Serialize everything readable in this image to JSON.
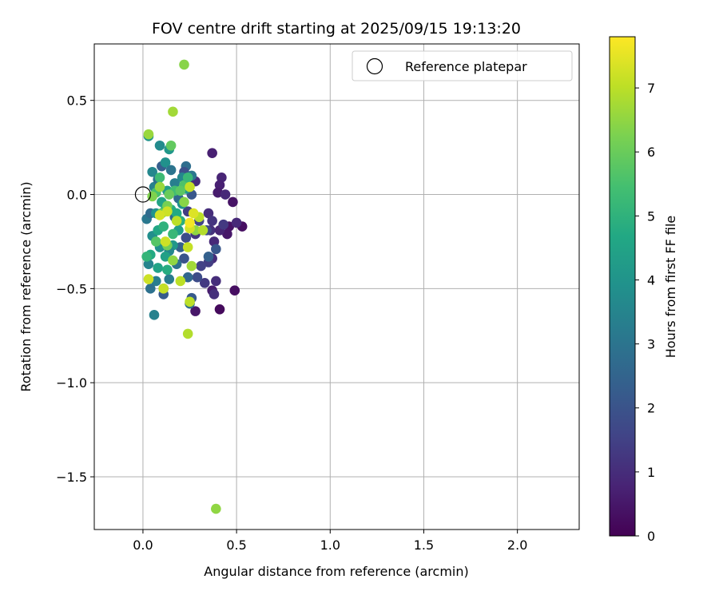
{
  "chart_data": {
    "type": "scatter",
    "title": "FOV centre drift starting at 2025/09/15 19:13:20",
    "xlabel": "Angular distance from reference (arcmin)",
    "ylabel": "Rotation from reference (arcmin)",
    "xlim": [
      -0.26,
      2.33
    ],
    "ylim": [
      -1.78,
      0.8
    ],
    "xticks": [
      0.0,
      0.5,
      1.0,
      1.5,
      2.0
    ],
    "xtick_labels": [
      "0.0",
      "0.5",
      "1.0",
      "1.5",
      "2.0"
    ],
    "yticks": [
      0.5,
      0.0,
      -0.5,
      -1.0,
      -1.5
    ],
    "ytick_labels": [
      "0.5",
      "0.0",
      "−0.5",
      "−1.0",
      "−1.5"
    ],
    "grid": true,
    "legend": {
      "position": "top-right",
      "entries": [
        "Reference platepar"
      ]
    },
    "reference_point": {
      "x": 0.0,
      "y": 0.0
    },
    "colorbar": {
      "label": "Hours from first FF file",
      "colormap": "viridis",
      "range": [
        0,
        7.8
      ],
      "ticks": [
        0,
        1,
        2,
        3,
        4,
        5,
        6,
        7
      ],
      "tick_labels": [
        "0",
        "1",
        "2",
        "3",
        "4",
        "5",
        "6",
        "7"
      ]
    },
    "points": [
      {
        "x": 0.41,
        "y": -0.61,
        "c": 0.2
      },
      {
        "x": 0.49,
        "y": -0.51,
        "c": 0.3
      },
      {
        "x": 0.28,
        "y": -0.62,
        "c": 0.5
      },
      {
        "x": 0.37,
        "y": -0.51,
        "c": 0.6
      },
      {
        "x": 0.46,
        "y": -0.17,
        "c": 0.4
      },
      {
        "x": 0.53,
        "y": -0.17,
        "c": 0.3
      },
      {
        "x": 0.45,
        "y": -0.21,
        "c": 0.5
      },
      {
        "x": 0.42,
        "y": 0.09,
        "c": 0.8
      },
      {
        "x": 0.41,
        "y": 0.05,
        "c": 0.7
      },
      {
        "x": 0.48,
        "y": -0.04,
        "c": 0.4
      },
      {
        "x": 0.4,
        "y": 0.01,
        "c": 0.6
      },
      {
        "x": 0.44,
        "y": -0.0,
        "c": 0.9
      },
      {
        "x": 0.38,
        "y": -0.25,
        "c": 0.9
      },
      {
        "x": 0.38,
        "y": -0.53,
        "c": 1.1
      },
      {
        "x": 0.39,
        "y": -0.46,
        "c": 1.0
      },
      {
        "x": 0.37,
        "y": 0.22,
        "c": 0.7
      },
      {
        "x": 0.35,
        "y": -0.1,
        "c": 1.0
      },
      {
        "x": 0.37,
        "y": -0.14,
        "c": 1.2
      },
      {
        "x": 0.5,
        "y": -0.15,
        "c": 0.9
      },
      {
        "x": 0.36,
        "y": -0.19,
        "c": 1.1
      },
      {
        "x": 0.41,
        "y": -0.19,
        "c": 0.8
      },
      {
        "x": 0.43,
        "y": -0.16,
        "c": 1.3
      },
      {
        "x": 0.33,
        "y": -0.47,
        "c": 1.3
      },
      {
        "x": 0.37,
        "y": -0.34,
        "c": 1.0
      },
      {
        "x": 0.35,
        "y": -0.36,
        "c": 1.4
      },
      {
        "x": 0.28,
        "y": 0.07,
        "c": 1.0
      },
      {
        "x": 0.3,
        "y": -0.14,
        "c": 1.6
      },
      {
        "x": 0.28,
        "y": -0.21,
        "c": 1.2
      },
      {
        "x": 0.31,
        "y": -0.38,
        "c": 1.5
      },
      {
        "x": 0.29,
        "y": -0.44,
        "c": 1.8
      },
      {
        "x": 0.39,
        "y": -0.29,
        "c": 2.1
      },
      {
        "x": 0.35,
        "y": -0.33,
        "c": 2.4
      },
      {
        "x": 0.34,
        "y": -0.19,
        "c": 1.7
      },
      {
        "x": 0.26,
        "y": 0.0,
        "c": 2.1
      },
      {
        "x": 0.24,
        "y": -0.09,
        "c": 1.4
      },
      {
        "x": 0.23,
        "y": 0.15,
        "c": 2.8
      },
      {
        "x": 0.22,
        "y": 0.12,
        "c": 1.9
      },
      {
        "x": 0.26,
        "y": 0.1,
        "c": 3.1
      },
      {
        "x": 0.26,
        "y": -0.55,
        "c": 2.2
      },
      {
        "x": 0.25,
        "y": -0.58,
        "c": 2.8
      },
      {
        "x": 0.24,
        "y": -0.44,
        "c": 2.6
      },
      {
        "x": 0.22,
        "y": -0.34,
        "c": 2.0
      },
      {
        "x": 0.2,
        "y": -0.28,
        "c": 2.4
      },
      {
        "x": 0.23,
        "y": -0.23,
        "c": 1.8
      },
      {
        "x": 0.17,
        "y": -0.12,
        "c": 2.6
      },
      {
        "x": 0.18,
        "y": -0.37,
        "c": 2.9
      },
      {
        "x": 0.14,
        "y": -0.45,
        "c": 3.2
      },
      {
        "x": 0.11,
        "y": -0.5,
        "c": 2.5
      },
      {
        "x": 0.11,
        "y": -0.53,
        "c": 2.2
      },
      {
        "x": 0.07,
        "y": -0.46,
        "c": 3.3
      },
      {
        "x": 0.04,
        "y": -0.5,
        "c": 2.9
      },
      {
        "x": 0.06,
        "y": -0.64,
        "c": 3.4
      },
      {
        "x": 0.03,
        "y": -0.37,
        "c": 3.5
      },
      {
        "x": 0.05,
        "y": -0.22,
        "c": 3.8
      },
      {
        "x": 0.02,
        "y": -0.13,
        "c": 3.1
      },
      {
        "x": 0.04,
        "y": -0.1,
        "c": 2.7
      },
      {
        "x": 0.06,
        "y": 0.04,
        "c": 3.4
      },
      {
        "x": 0.05,
        "y": 0.12,
        "c": 3.6
      },
      {
        "x": 0.08,
        "y": 0.08,
        "c": 2.9
      },
      {
        "x": 0.1,
        "y": 0.15,
        "c": 2.3
      },
      {
        "x": 0.12,
        "y": 0.17,
        "c": 3.9
      },
      {
        "x": 0.09,
        "y": 0.26,
        "c": 3.7
      },
      {
        "x": 0.03,
        "y": 0.31,
        "c": 4.0
      },
      {
        "x": 0.14,
        "y": 0.24,
        "c": 4.1
      },
      {
        "x": 0.15,
        "y": 0.13,
        "c": 3.0
      },
      {
        "x": 0.17,
        "y": 0.06,
        "c": 3.3
      },
      {
        "x": 0.19,
        "y": -0.02,
        "c": 2.7
      },
      {
        "x": 0.21,
        "y": 0.09,
        "c": 3.6
      },
      {
        "x": 0.23,
        "y": 0.03,
        "c": 4.2
      },
      {
        "x": 0.21,
        "y": -0.05,
        "c": 3.9
      },
      {
        "x": 0.19,
        "y": -0.19,
        "c": 4.3
      },
      {
        "x": 0.16,
        "y": -0.27,
        "c": 4.1
      },
      {
        "x": 0.14,
        "y": -0.3,
        "c": 3.6
      },
      {
        "x": 0.12,
        "y": -0.33,
        "c": 4.4
      },
      {
        "x": 0.09,
        "y": -0.28,
        "c": 3.9
      },
      {
        "x": 0.08,
        "y": -0.19,
        "c": 4.6
      },
      {
        "x": 0.07,
        "y": -0.1,
        "c": 4.0
      },
      {
        "x": 0.1,
        "y": -0.04,
        "c": 4.5
      },
      {
        "x": 0.13,
        "y": 0.02,
        "c": 4.3
      },
      {
        "x": 0.15,
        "y": -0.08,
        "c": 4.8
      },
      {
        "x": 0.18,
        "y": -0.1,
        "c": 4.7
      },
      {
        "x": 0.2,
        "y": -0.14,
        "c": 4.9
      },
      {
        "x": 0.11,
        "y": -0.17,
        "c": 5.0
      },
      {
        "x": 0.04,
        "y": -0.32,
        "c": 4.7
      },
      {
        "x": 0.02,
        "y": -0.33,
        "c": 5.1
      },
      {
        "x": 0.08,
        "y": -0.39,
        "c": 4.5
      },
      {
        "x": 0.13,
        "y": -0.4,
        "c": 4.8
      },
      {
        "x": 0.16,
        "y": -0.21,
        "c": 5.2
      },
      {
        "x": 0.12,
        "y": -0.08,
        "c": 5.0
      },
      {
        "x": 0.09,
        "y": 0.09,
        "c": 5.3
      },
      {
        "x": 0.07,
        "y": 0.01,
        "c": 5.5
      },
      {
        "x": 0.17,
        "y": 0.02,
        "c": 5.4
      },
      {
        "x": 0.22,
        "y": 0.05,
        "c": 5.6
      },
      {
        "x": 0.24,
        "y": 0.09,
        "c": 5.2
      },
      {
        "x": 0.2,
        "y": 0.02,
        "c": 5.8
      },
      {
        "x": 0.15,
        "y": 0.26,
        "c": 5.9
      },
      {
        "x": 0.07,
        "y": -0.25,
        "c": 5.7
      },
      {
        "x": 0.1,
        "y": -0.1,
        "c": 5.9
      },
      {
        "x": 0.13,
        "y": -0.27,
        "c": 6.1
      },
      {
        "x": 0.05,
        "y": -0.01,
        "c": 6.3
      },
      {
        "x": 0.14,
        "y": 0.0,
        "c": 6.0
      },
      {
        "x": 0.22,
        "y": -0.04,
        "c": 6.4
      },
      {
        "x": 0.09,
        "y": 0.04,
        "c": 6.6
      },
      {
        "x": 0.13,
        "y": -0.06,
        "c": 6.2
      },
      {
        "x": 0.16,
        "y": -0.35,
        "c": 6.5
      },
      {
        "x": 0.28,
        "y": -0.19,
        "c": 6.5
      },
      {
        "x": 0.26,
        "y": -0.38,
        "c": 6.7
      },
      {
        "x": 0.03,
        "y": 0.32,
        "c": 6.6
      },
      {
        "x": 0.16,
        "y": 0.44,
        "c": 6.7
      },
      {
        "x": 0.22,
        "y": 0.69,
        "c": 6.4
      },
      {
        "x": 0.39,
        "y": -1.67,
        "c": 6.5
      },
      {
        "x": 0.24,
        "y": -0.74,
        "c": 6.9
      },
      {
        "x": 0.25,
        "y": -0.57,
        "c": 7.0
      },
      {
        "x": 0.2,
        "y": -0.46,
        "c": 7.0
      },
      {
        "x": 0.11,
        "y": -0.5,
        "c": 7.1
      },
      {
        "x": 0.03,
        "y": -0.45,
        "c": 7.2
      },
      {
        "x": 0.24,
        "y": -0.28,
        "c": 7.1
      },
      {
        "x": 0.32,
        "y": -0.19,
        "c": 6.9
      },
      {
        "x": 0.3,
        "y": -0.12,
        "c": 7.0
      },
      {
        "x": 0.25,
        "y": -0.18,
        "c": 7.3
      },
      {
        "x": 0.18,
        "y": -0.14,
        "c": 7.0
      },
      {
        "x": 0.13,
        "y": -0.09,
        "c": 7.2
      },
      {
        "x": 0.09,
        "y": -0.11,
        "c": 7.3
      },
      {
        "x": 0.12,
        "y": -0.25,
        "c": 7.2
      },
      {
        "x": 0.25,
        "y": 0.04,
        "c": 7.1
      },
      {
        "x": 0.27,
        "y": -0.1,
        "c": 7.4
      },
      {
        "x": 0.25,
        "y": -0.15,
        "c": 7.7
      }
    ]
  }
}
